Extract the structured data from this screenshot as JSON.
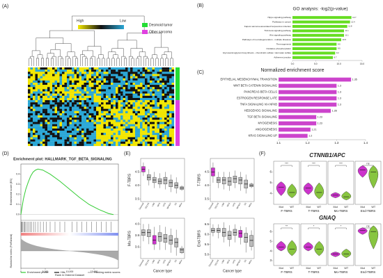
{
  "chart_data": [
    {
      "type": "heatmap",
      "label": "(A)",
      "scale_labels": [
        "High",
        "Low"
      ],
      "groups": [
        {
          "name": "Desmoid tumor",
          "color": "#22dd33"
        },
        {
          "name": "Other sarcoma",
          "color": "#e040e0"
        }
      ]
    },
    {
      "type": "hbar",
      "label": "(B)",
      "title": "GO analysis: -log2(p-value)",
      "color": "#66dd22",
      "categories": [
        "Hippo signaling pathway",
        "Pathways in cancer",
        "Kaposi sarcoma-associated herpesvirus infection",
        "TGF-beta signaling pathway",
        "Wnt signaling pathway",
        "Pathways of neurodegeneration - multiple diseases",
        "Thermogenesis",
        "Oxidative phosphorylation",
        "Glycosaminoglycan biosynthesis - chondroitin sulfate / dermatan sulfate",
        "Adherens junction"
      ],
      "values": [
        12.7,
        12.4,
        11.8,
        11.1,
        11.1,
        10.5,
        9.5,
        9.5,
        9.2,
        8.7
      ],
      "xlim": [
        0,
        15
      ],
      "xticks": [
        {
          "value": 0,
          "label": "0.0"
        },
        {
          "value": 5,
          "label": "5.0"
        },
        {
          "value": 10,
          "label": "10.0"
        },
        {
          "value": 15,
          "label": "15.0"
        }
      ]
    },
    {
      "type": "hbar",
      "label": "(C)",
      "title": "Normalized enrichment score",
      "color": "#cc44cc",
      "categories": [
        "EPITHELIAL MESENCHYMAL TRANSITION",
        "WNT BETA CATENIN SIGNALING",
        "PANCREAS BETA CELLS",
        "ESTROGEN RESPONSE LATE",
        "TNFA SIGNALING VIA NFKB",
        "HEDGEHOG SIGNALING",
        "TGF BETA SIGNALING",
        "MYOGENESIS",
        "ANGIOGENESIS",
        "KRAS SIGNALING UP"
      ],
      "values": [
        1.35,
        1.3,
        1.3,
        1.3,
        1.3,
        1.28,
        1.23,
        1.23,
        1.21,
        1.2
      ],
      "xlim": [
        1.1,
        1.4
      ],
      "xticks": [
        1.1,
        1.2,
        1.3,
        1.4
      ]
    },
    {
      "type": "enrichment",
      "label": "(D)",
      "title": "Enrichment plot: HALLMARK_TGF_BETA_SIGNALING",
      "ylabel": "Enrichment score (ES)",
      "ylabel2": "Ranked list metric (PreRanked)",
      "xlabel": "Rank in Ordered Dataset",
      "color": "#33cc33",
      "x": [
        0,
        500,
        1000,
        1500,
        2000,
        2500,
        3000,
        3500,
        4500,
        6000,
        8000,
        10000,
        12000,
        14000,
        16000,
        18000,
        19000
      ],
      "values": [
        0,
        0.15,
        0.25,
        0.32,
        0.38,
        0.42,
        0.44,
        0.45,
        0.44,
        0.4,
        0.33,
        0.25,
        0.17,
        0.1,
        0.05,
        0.01,
        0
      ],
      "hits": [
        100,
        250,
        400,
        600,
        800,
        1000,
        1300,
        1600,
        1900,
        2200,
        2600,
        3000,
        3500,
        4000,
        4600,
        5200,
        6000,
        7000,
        8000,
        9000,
        10500,
        11500,
        12500,
        13500,
        14500,
        15500,
        16500,
        17500,
        18500
      ],
      "xlim": [
        0,
        20000
      ],
      "xticks": [
        0,
        {
          "value": 5000,
          "label": "5,000"
        },
        {
          "value": 10000,
          "label": "10,000"
        },
        {
          "value": 15000,
          "label": "15,000"
        }
      ],
      "ylim": [
        -0.05,
        0.5
      ],
      "yticks": [
        {
          "value": 0,
          "label": "0.0"
        },
        0.1,
        0.2,
        0.3,
        0.4
      ],
      "legend": [
        "Enrichment profile",
        "Hits",
        "Ranking metric scores"
      ]
    },
    {
      "type": "box",
      "label": "(E)",
      "ylabel": "F-TBRS",
      "categories": [
        "Desmoid",
        "DDLPS",
        "LMS",
        "MFS",
        "UPS",
        "MPNST",
        "SS",
        "Other"
      ],
      "colors": [
        "#cc33cc",
        "#bbbbbb",
        "#bbbbbb",
        "#bbbbbb",
        "#bbbbbb",
        "#bbbbbb",
        "#bbbbbb",
        "#bbbbbb"
      ],
      "whislo": [
        4.35,
        4.0,
        3.9,
        3.9,
        3.85,
        3.75,
        3.7,
        3.8
      ],
      "q1": [
        4.5,
        4.2,
        4.1,
        4.05,
        4.05,
        3.95,
        3.9,
        3.85
      ],
      "median": [
        4.6,
        4.3,
        4.2,
        4.15,
        4.2,
        4.1,
        4.0,
        3.9
      ],
      "q3": [
        4.7,
        4.4,
        4.3,
        4.25,
        4.3,
        4.2,
        4.1,
        3.95
      ],
      "whishi": [
        4.85,
        4.6,
        4.5,
        4.45,
        4.5,
        4.4,
        4.3,
        4.0
      ],
      "ylim": [
        3.4,
        5.0
      ],
      "yticks": [
        3.5,
        {
          "value": 4.0,
          "label": "4.0"
        },
        4.5
      ]
    },
    {
      "type": "box",
      "ylabel": "T-TBRS",
      "categories": [
        "Desmoid",
        "DDLPS",
        "LMS",
        "MFS",
        "UPS",
        "MPNST",
        "SS",
        "Other"
      ],
      "colors": [
        "#cc33cc",
        "#bbbbbb",
        "#bbbbbb",
        "#bbbbbb",
        "#bbbbbb",
        "#bbbbbb",
        "#bbbbbb",
        "#bbbbbb"
      ],
      "whislo": [
        4.1,
        3.9,
        3.85,
        3.8,
        3.9,
        3.8,
        3.7,
        3.9
      ],
      "q1": [
        4.35,
        4.1,
        4.05,
        4.0,
        4.1,
        4.05,
        3.9,
        3.95
      ],
      "median": [
        4.5,
        4.2,
        4.2,
        4.15,
        4.25,
        4.2,
        4.05,
        4.0
      ],
      "q3": [
        4.65,
        4.3,
        4.3,
        4.3,
        4.35,
        4.3,
        4.2,
        4.05
      ],
      "whishi": [
        4.85,
        4.5,
        4.5,
        4.5,
        4.55,
        4.5,
        4.4,
        4.1
      ],
      "ylim": [
        3.4,
        5.0
      ],
      "yticks": [
        3.5,
        {
          "value": 4.0,
          "label": "4.0"
        },
        4.5
      ]
    },
    {
      "type": "box",
      "ylabel": "Mo-TBRS",
      "xlabel": "Cancer type",
      "categories": [
        "Desmoid",
        "DDLPS",
        "LMS",
        "MFS",
        "UPS",
        "MPNST",
        "SS",
        "Other"
      ],
      "colors": [
        "#bbbbbb",
        "#bbbbbb",
        "#cc33cc",
        "#bbbbbb",
        "#bbbbbb",
        "#bbbbbb",
        "#bbbbbb",
        "#bbbbbb"
      ],
      "whislo": [
        3.7,
        3.65,
        3.55,
        3.55,
        3.55,
        3.5,
        3.45,
        3.48
      ],
      "q1": [
        3.8,
        3.78,
        3.65,
        3.7,
        3.68,
        3.65,
        3.6,
        3.5
      ],
      "median": [
        3.85,
        3.85,
        3.72,
        3.78,
        3.75,
        3.72,
        3.68,
        3.55
      ],
      "q3": [
        3.9,
        3.9,
        3.8,
        3.85,
        3.82,
        3.8,
        3.75,
        3.58
      ],
      "whishi": [
        4.0,
        4.0,
        3.95,
        3.98,
        3.95,
        3.92,
        3.9,
        3.62
      ],
      "ylim": [
        3.4,
        4.1
      ],
      "yticks": [
        3.6,
        3.8,
        {
          "value": 4.0,
          "label": "4.0"
        }
      ]
    },
    {
      "type": "box",
      "ylabel": "End-TBRS",
      "xlabel": "Cancer type",
      "categories": [
        "Desmoid",
        "DDLPS",
        "LMS",
        "MFS",
        "UPS",
        "MPNST",
        "SS",
        "Other"
      ],
      "colors": [
        "#bbbbbb",
        "#bbbbbb",
        "#bbbbbb",
        "#bbbbbb",
        "#bbbbbb",
        "#cc33cc",
        "#bbbbbb",
        "#bbbbbb"
      ],
      "whislo": [
        5.9,
        5.8,
        5.6,
        5.4,
        5.6,
        5.5,
        5.1,
        5.2
      ],
      "q1": [
        6.1,
        6.1,
        5.9,
        5.75,
        5.95,
        5.85,
        5.6,
        5.4
      ],
      "median": [
        6.2,
        6.2,
        6.1,
        5.95,
        6.1,
        6.05,
        5.85,
        5.7
      ],
      "q3": [
        6.3,
        6.3,
        6.3,
        6.15,
        6.25,
        6.2,
        6.05,
        5.95
      ],
      "whishi": [
        6.5,
        6.5,
        6.6,
        6.45,
        6.5,
        6.4,
        6.35,
        6.2
      ],
      "ylim": [
        4.8,
        6.8
      ],
      "yticks": [
        {
          "value": 5.0,
          "label": "5.0"
        },
        5.5,
        {
          "value": 6.0,
          "label": "6.0"
        },
        6.5
      ]
    },
    {
      "type": "violin",
      "label": "(F)",
      "title": "CTNNB1/APC",
      "colors": [
        "#cc33cc",
        "#88c540"
      ],
      "ylim": [
        3,
        7
      ],
      "yticks": [
        4,
        5,
        6
      ],
      "groups": [
        {
          "name": "F-TBRS",
          "signif": "***",
          "series": [
            {
              "name": "Mut",
              "min": 3.8,
              "median": 4.6,
              "max": 5.1
            },
            {
              "name": "WT",
              "min": 3.6,
              "median": 4.1,
              "max": 4.9
            }
          ]
        },
        {
          "name": "T-TBRS",
          "signif": "***",
          "series": [
            {
              "name": "Mut",
              "min": 3.9,
              "median": 4.5,
              "max": 5.0
            },
            {
              "name": "WT",
              "min": 3.5,
              "median": 4.1,
              "max": 5.0
            }
          ]
        },
        {
          "name": "Mo-TBRS",
          "signif": "***",
          "series": [
            {
              "name": "Mut",
              "min": 3.6,
              "median": 3.85,
              "max": 4.1
            },
            {
              "name": "WT",
              "min": 3.4,
              "median": 3.7,
              "max": 4.2
            }
          ]
        },
        {
          "name": "End-TBRS",
          "signif": "ns",
          "series": [
            {
              "name": "Mut",
              "min": 5.5,
              "median": 6.2,
              "max": 6.6
            },
            {
              "name": "WT",
              "min": 4.5,
              "median": 6.0,
              "max": 6.6
            }
          ]
        }
      ]
    },
    {
      "type": "violin",
      "title": "GNAQ",
      "colors": [
        "#cc33cc",
        "#88c540"
      ],
      "ylim": [
        2.5,
        6.8
      ],
      "yticks": [
        3,
        4,
        5,
        6
      ],
      "groups": [
        {
          "name": "F-TBRS",
          "signif": "**",
          "series": [
            {
              "name": "Mut",
              "min": 4.0,
              "median": 4.4,
              "max": 5.0
            },
            {
              "name": "WT",
              "min": 3.5,
              "median": 4.2,
              "max": 5.1
            }
          ]
        },
        {
          "name": "T-TBRS",
          "signif": "*",
          "series": [
            {
              "name": "Mut",
              "min": 4.0,
              "median": 4.4,
              "max": 4.9
            },
            {
              "name": "WT",
              "min": 3.5,
              "median": 4.2,
              "max": 5.0
            }
          ]
        },
        {
          "name": "Mo-TBRS",
          "signif": "*",
          "series": [
            {
              "name": "Mut",
              "min": 3.4,
              "median": 3.7,
              "max": 3.9
            },
            {
              "name": "WT",
              "min": 3.3,
              "median": 3.7,
              "max": 4.2
            }
          ]
        },
        {
          "name": "End-TBRS",
          "signif": "ns",
          "series": [
            {
              "name": "Mut",
              "min": 5.7,
              "median": 6.1,
              "max": 6.4
            },
            {
              "name": "WT",
              "min": 4.2,
              "median": 6.0,
              "max": 6.6
            }
          ]
        }
      ]
    }
  ]
}
